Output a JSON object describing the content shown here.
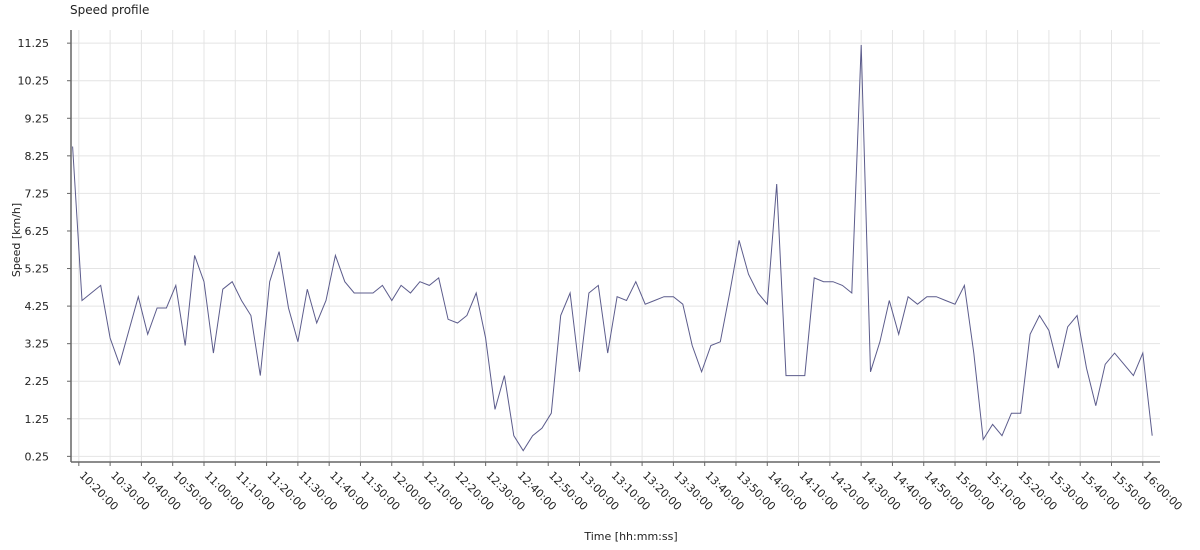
{
  "chart_data": {
    "type": "line",
    "title": "Speed profile",
    "x_label": "Time  [hh:mm:ss]",
    "y_label": "Speed [km/h]",
    "color": "#5c5c8c",
    "grid": true,
    "xlim": [
      "10:17:30",
      "16:05:30"
    ],
    "xticks": [
      "10:20:00",
      "10:30:00",
      "10:40:00",
      "10:50:00",
      "11:00:00",
      "11:10:00",
      "11:20:00",
      "11:30:00",
      "11:40:00",
      "11:50:00",
      "12:00:00",
      "12:10:00",
      "12:20:00",
      "12:30:00",
      "12:40:00",
      "12:50:00",
      "13:00:00",
      "13:10:00",
      "13:20:00",
      "13:30:00",
      "13:40:00",
      "13:50:00",
      "14:00:00",
      "14:10:00",
      "14:20:00",
      "14:30:00",
      "14:40:00",
      "14:50:00",
      "15:00:00",
      "15:10:00",
      "15:20:00",
      "15:30:00",
      "15:40:00",
      "15:50:00",
      "16:00:00"
    ],
    "ylim": [
      0.1,
      11.6
    ],
    "yticks": [
      0.25,
      1.25,
      2.25,
      3.25,
      4.25,
      5.25,
      6.25,
      7.25,
      8.25,
      9.25,
      10.25,
      11.25
    ],
    "x": [
      "10:18:00",
      "10:21:00",
      "10:24:00",
      "10:27:00",
      "10:30:00",
      "10:33:00",
      "10:36:00",
      "10:39:00",
      "10:42:00",
      "10:45:00",
      "10:48:00",
      "10:51:00",
      "10:54:00",
      "10:57:00",
      "11:00:00",
      "11:03:00",
      "11:06:00",
      "11:09:00",
      "11:12:00",
      "11:15:00",
      "11:18:00",
      "11:21:00",
      "11:24:00",
      "11:27:00",
      "11:30:00",
      "11:33:00",
      "11:36:00",
      "11:39:00",
      "11:42:00",
      "11:45:00",
      "11:48:00",
      "11:51:00",
      "11:54:00",
      "11:57:00",
      "12:00:00",
      "12:03:00",
      "12:06:00",
      "12:09:00",
      "12:12:00",
      "12:15:00",
      "12:18:00",
      "12:21:00",
      "12:24:00",
      "12:27:00",
      "12:30:00",
      "12:33:00",
      "12:36:00",
      "12:39:00",
      "12:42:00",
      "12:45:00",
      "12:48:00",
      "12:51:00",
      "12:54:00",
      "12:57:00",
      "13:00:00",
      "13:03:00",
      "13:06:00",
      "13:09:00",
      "13:12:00",
      "13:15:00",
      "13:18:00",
      "13:21:00",
      "13:24:00",
      "13:27:00",
      "13:30:00",
      "13:33:00",
      "13:36:00",
      "13:39:00",
      "13:42:00",
      "13:45:00",
      "13:48:00",
      "13:51:00",
      "13:54:00",
      "13:57:00",
      "14:00:00",
      "14:03:00",
      "14:06:00",
      "14:09:00",
      "14:12:00",
      "14:15:00",
      "14:18:00",
      "14:21:00",
      "14:24:00",
      "14:27:00",
      "14:30:00",
      "14:33:00",
      "14:36:00",
      "14:39:00",
      "14:42:00",
      "14:45:00",
      "14:48:00",
      "14:51:00",
      "14:54:00",
      "14:57:00",
      "15:00:00",
      "15:03:00",
      "15:06:00",
      "15:09:00",
      "15:12:00",
      "15:15:00",
      "15:18:00",
      "15:21:00",
      "15:24:00",
      "15:27:00",
      "15:30:00",
      "15:33:00",
      "15:36:00",
      "15:39:00",
      "15:42:00",
      "15:45:00",
      "15:48:00",
      "15:51:00",
      "15:54:00",
      "15:57:00",
      "16:00:00",
      "16:03:00"
    ],
    "values": [
      8.5,
      4.4,
      4.6,
      4.8,
      3.4,
      2.7,
      3.6,
      4.5,
      3.5,
      4.2,
      4.2,
      4.8,
      3.2,
      5.6,
      4.9,
      3.0,
      4.7,
      4.9,
      4.4,
      4.0,
      2.4,
      4.9,
      5.7,
      4.2,
      3.3,
      4.7,
      3.8,
      4.4,
      5.6,
      4.9,
      4.6,
      4.6,
      4.6,
      4.8,
      4.4,
      4.8,
      4.6,
      4.9,
      4.8,
      5.0,
      3.9,
      3.8,
      4.0,
      4.6,
      3.4,
      1.5,
      2.4,
      0.8,
      0.4,
      0.8,
      1.0,
      1.4,
      4.0,
      4.6,
      2.5,
      4.6,
      4.8,
      3.0,
      4.5,
      4.4,
      4.9,
      4.3,
      4.4,
      4.5,
      4.5,
      4.3,
      3.2,
      2.5,
      3.2,
      3.3,
      4.6,
      6.0,
      5.1,
      4.6,
      4.3,
      7.5,
      2.4,
      2.4,
      2.4,
      5.0,
      4.9,
      4.9,
      4.8,
      4.6,
      11.2,
      2.5,
      3.3,
      4.4,
      3.5,
      4.5,
      4.3,
      4.5,
      4.5,
      4.4,
      4.3,
      4.8,
      3.0,
      0.7,
      1.1,
      0.8,
      1.4,
      1.4,
      3.5,
      4.0,
      3.6,
      2.6,
      3.7,
      4.0,
      2.6,
      1.6,
      2.7,
      3.0,
      2.7,
      2.4,
      3.0,
      0.8
    ]
  }
}
